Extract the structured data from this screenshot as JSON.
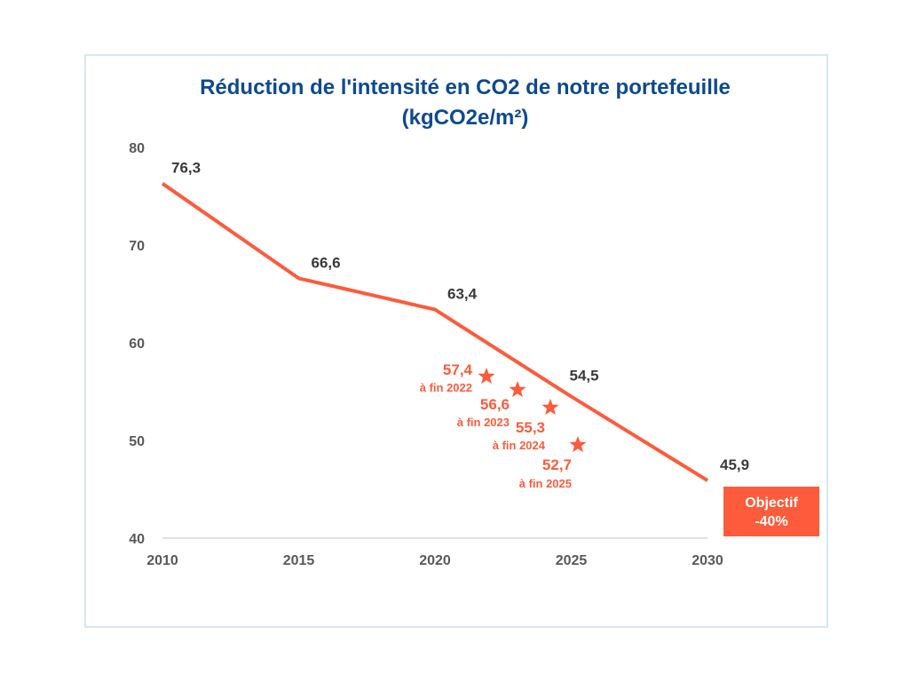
{
  "chart_data": {
    "type": "line",
    "title": "Réduction de l'intensité en CO2 de notre portefeuille",
    "subtitle": "(kgCO2e/m²)",
    "xlabel": "",
    "ylabel": "",
    "xlim": [
      2010,
      2030
    ],
    "ylim": [
      40,
      80
    ],
    "x_ticks": [
      "2010",
      "2015",
      "2020",
      "2025",
      "2030"
    ],
    "y_ticks": [
      "40",
      "50",
      "60",
      "70",
      "80"
    ],
    "grid": false,
    "legend": "none",
    "series": [
      {
        "x": [
          2010,
          2015,
          2020,
          2025,
          2030
        ],
        "values": [
          76.3,
          66.6,
          63.4,
          54.5,
          45.9
        ],
        "labels": [
          "76,3",
          "66,6",
          "63,4",
          "54,5",
          "45,9"
        ]
      }
    ],
    "stars": [
      {
        "value": 57.4,
        "label": "57,4",
        "sublabel": "à fin 2022"
      },
      {
        "value": 56.6,
        "label": "56,6",
        "sublabel": "à fin 2023"
      },
      {
        "value": 55.3,
        "label": "55,3",
        "sublabel": "à fin 2024"
      },
      {
        "value": 52.7,
        "label": "52,7",
        "sublabel": "à fin 2025"
      }
    ],
    "target_box": {
      "line1": "Objectif",
      "line2": "-40%"
    },
    "colors": {
      "line": "#fd5b3b",
      "title": "#0d4a90",
      "labels": "#3a3a3a",
      "axis": "#595959",
      "frame": "#d5e6f8"
    }
  }
}
